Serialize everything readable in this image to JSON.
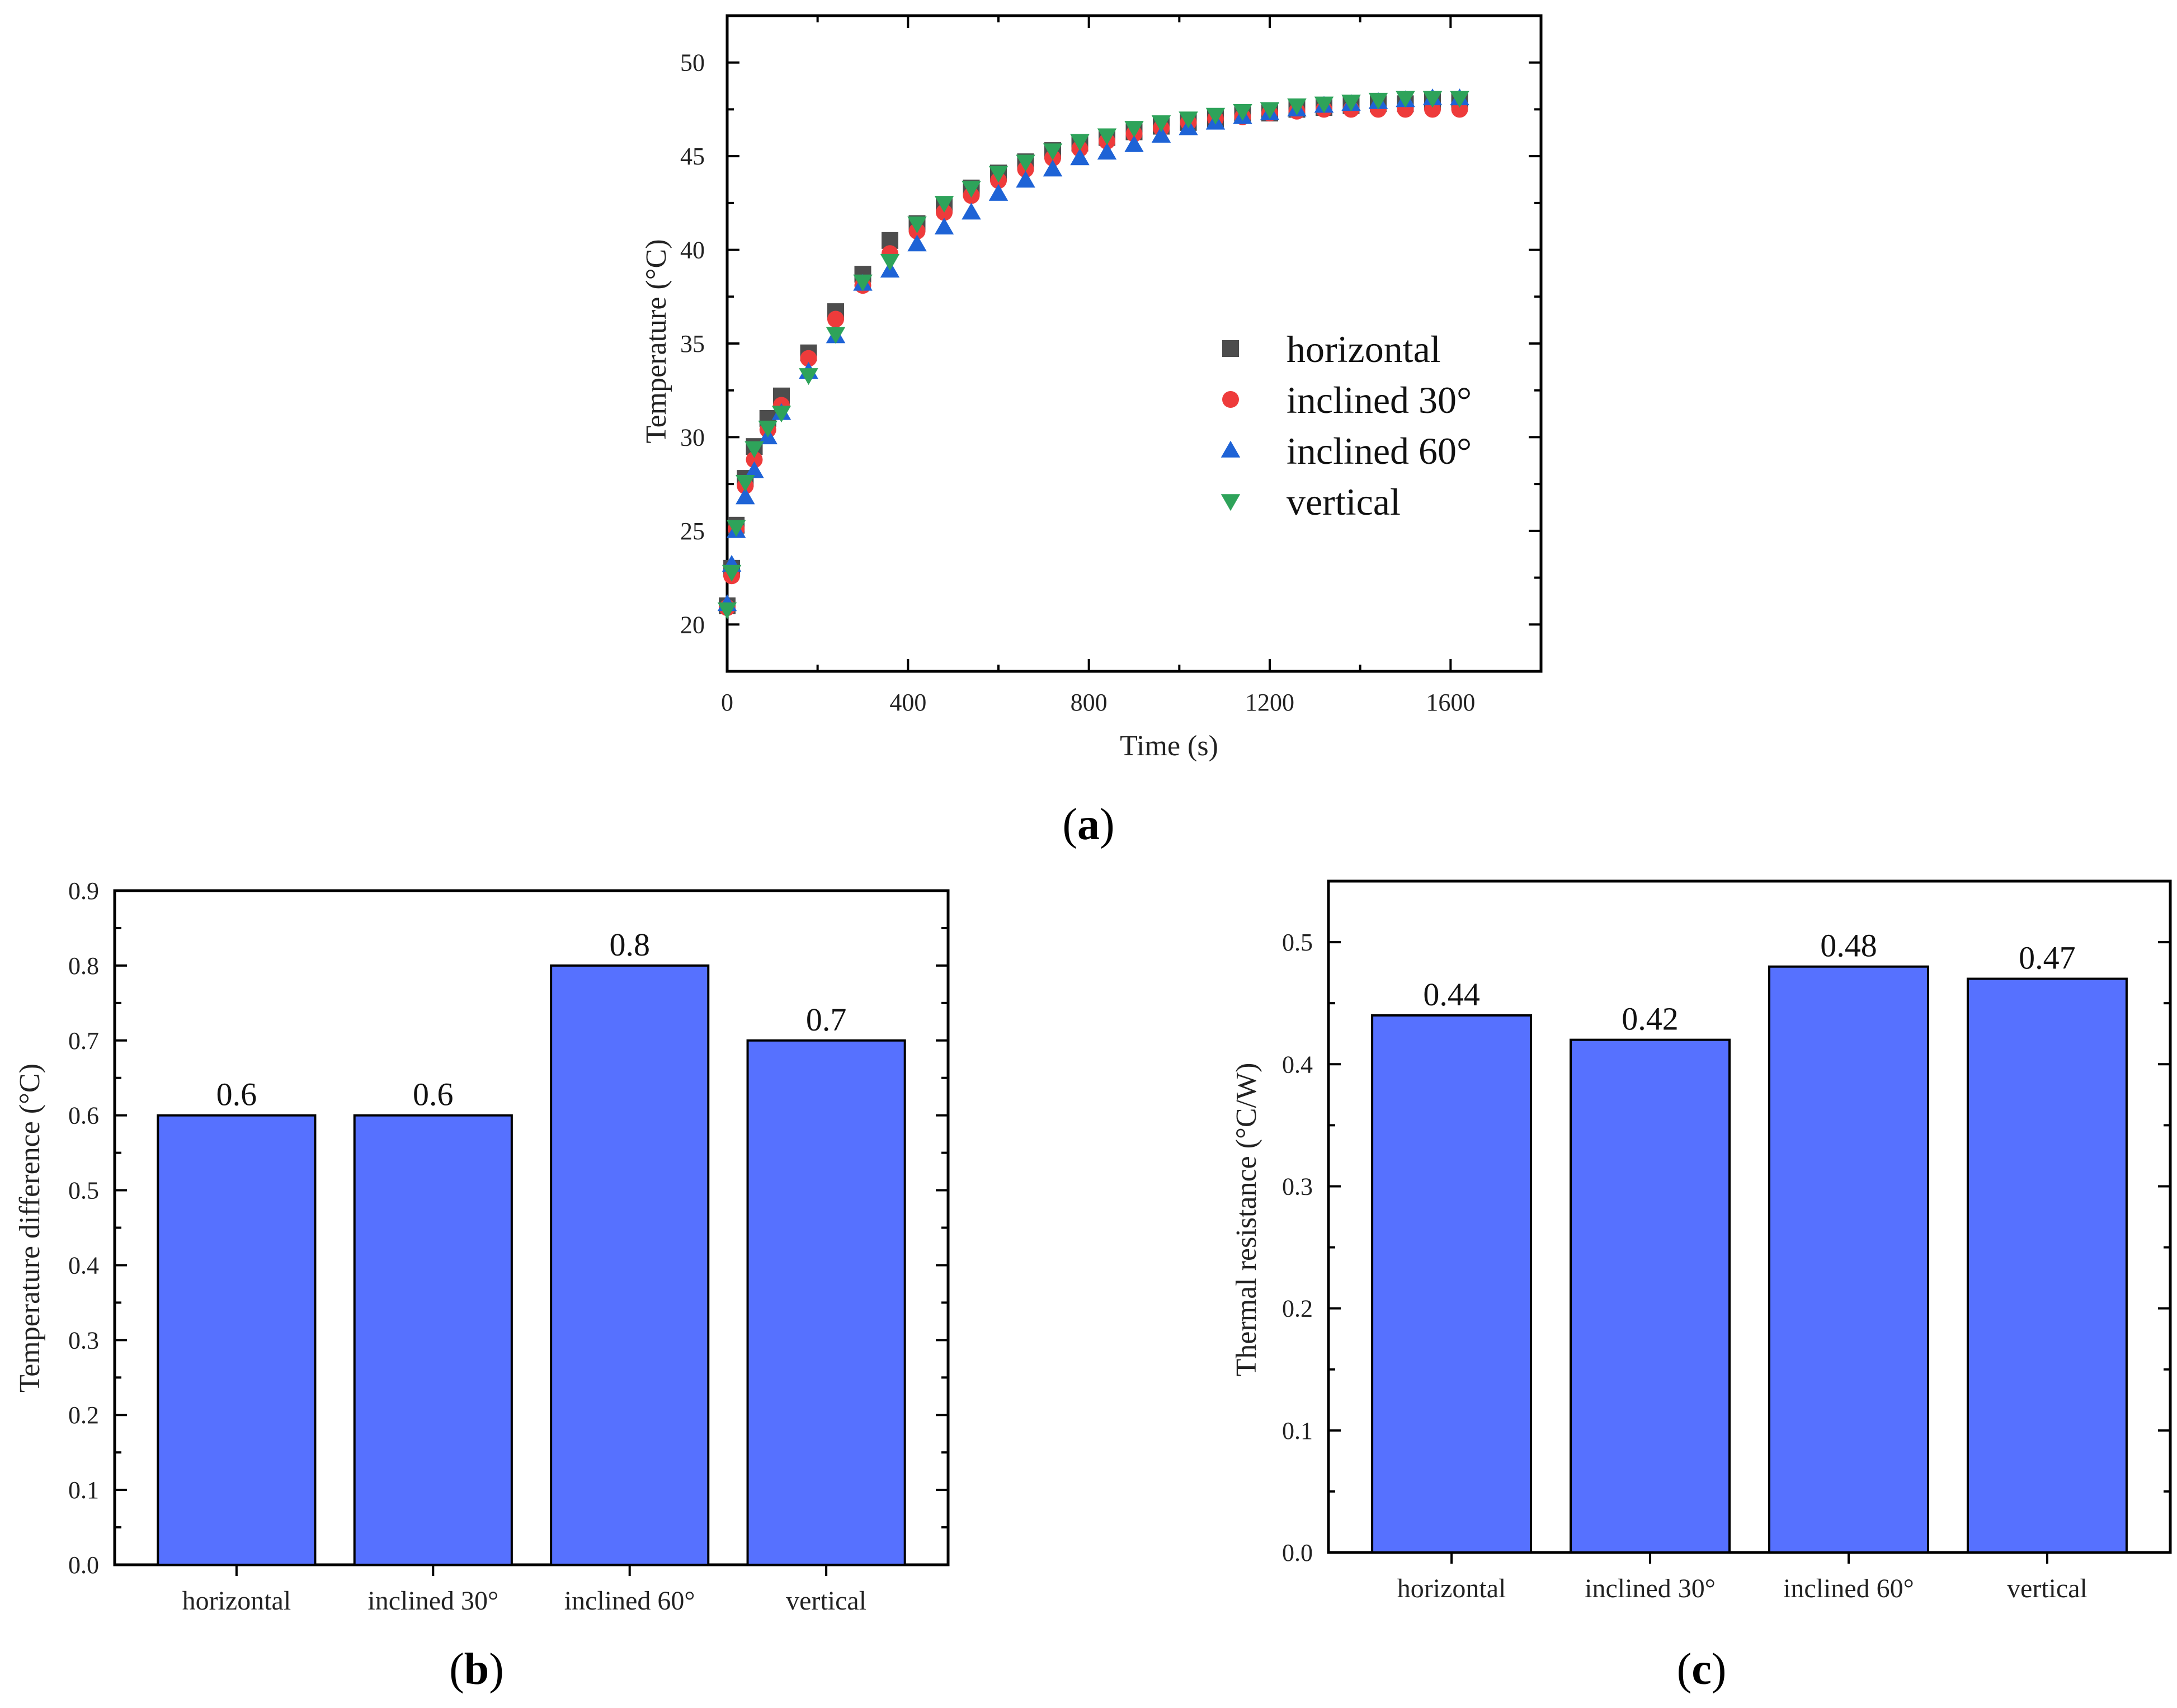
{
  "chart_data": [
    {
      "id": "a",
      "panel_label": "a",
      "type": "scatter",
      "xlabel": "Time (s)",
      "ylabel": "Temperature (°C)",
      "xlim": [
        0,
        1800
      ],
      "ylim": [
        17.5,
        52.5
      ],
      "xticks": [
        0,
        400,
        800,
        1200,
        1600
      ],
      "yticks": [
        20,
        25,
        30,
        35,
        40,
        45,
        50
      ],
      "legend_position": "right-center",
      "x": [
        0,
        10,
        20,
        40,
        60,
        90,
        120,
        180,
        240,
        300,
        360,
        420,
        480,
        540,
        600,
        660,
        720,
        780,
        840,
        900,
        960,
        1020,
        1080,
        1140,
        1200,
        1260,
        1320,
        1380,
        1440,
        1500,
        1560,
        1620
      ],
      "series": [
        {
          "name": "horizontal",
          "marker": "square",
          "color": "#4d4d4d",
          "values": [
            21.0,
            23.0,
            25.3,
            27.8,
            29.5,
            31.0,
            32.2,
            34.5,
            36.7,
            38.7,
            40.5,
            41.4,
            42.4,
            43.3,
            44.1,
            44.7,
            45.3,
            45.7,
            46.0,
            46.3,
            46.6,
            46.8,
            47.0,
            47.2,
            47.3,
            47.5,
            47.6,
            47.7,
            47.8,
            47.8,
            47.9,
            48.0
          ]
        },
        {
          "name": "inclined 30°",
          "marker": "circle",
          "color": "#ee3b3b",
          "values": [
            20.9,
            22.6,
            25.1,
            27.4,
            28.8,
            30.4,
            31.7,
            34.2,
            36.3,
            38.1,
            39.8,
            41.0,
            42.0,
            42.9,
            43.7,
            44.3,
            44.9,
            45.4,
            45.8,
            46.2,
            46.5,
            46.8,
            47.0,
            47.1,
            47.3,
            47.4,
            47.5,
            47.5,
            47.5,
            47.5,
            47.5,
            47.5
          ]
        },
        {
          "name": "inclined 60°",
          "marker": "triangle-up",
          "color": "#1e63d6",
          "values": [
            21.1,
            23.2,
            25.0,
            26.8,
            28.2,
            30.0,
            31.3,
            33.5,
            35.4,
            38.2,
            38.9,
            40.3,
            41.2,
            42.0,
            43.0,
            43.7,
            44.3,
            44.9,
            45.2,
            45.6,
            46.1,
            46.5,
            46.8,
            47.1,
            47.3,
            47.5,
            47.7,
            47.8,
            47.9,
            48.0,
            48.1,
            48.1
          ]
        },
        {
          "name": "vertical",
          "marker": "triangle-down",
          "color": "#2ea35a",
          "values": [
            20.8,
            22.8,
            25.2,
            27.6,
            29.4,
            30.5,
            31.3,
            33.3,
            35.5,
            38.3,
            39.4,
            41.4,
            42.5,
            43.3,
            44.1,
            44.7,
            45.3,
            45.8,
            46.1,
            46.5,
            46.8,
            47.0,
            47.2,
            47.4,
            47.5,
            47.7,
            47.8,
            47.9,
            48.0,
            48.1,
            48.1,
            48.1
          ]
        }
      ]
    },
    {
      "id": "b",
      "panel_label": "b",
      "type": "bar",
      "xlabel": "",
      "ylabel": "Temperature difference (°C)",
      "ylim": [
        0,
        0.9
      ],
      "yticks": [
        "0.0",
        "0.1",
        "0.2",
        "0.3",
        "0.4",
        "0.5",
        "0.6",
        "0.7",
        "0.8",
        "0.9"
      ],
      "categories": [
        "horizontal",
        "inclined 30°",
        "inclined 60°",
        "vertical"
      ],
      "values": [
        0.6,
        0.6,
        0.8,
        0.7
      ],
      "value_labels": [
        "0.6",
        "0.6",
        "0.8",
        "0.7"
      ],
      "bar_color": "#5671ff"
    },
    {
      "id": "c",
      "panel_label": "c",
      "type": "bar",
      "xlabel": "",
      "ylabel": "Thermal resistance (°C/W)",
      "ylim": [
        0,
        0.55
      ],
      "yticks": [
        "0.0",
        "0.1",
        "0.2",
        "0.3",
        "0.4",
        "0.5"
      ],
      "categories": [
        "horizontal",
        "inclined 30°",
        "inclined 60°",
        "vertical"
      ],
      "values": [
        0.44,
        0.42,
        0.48,
        0.47
      ],
      "value_labels": [
        "0.44",
        "0.42",
        "0.48",
        "0.47"
      ],
      "bar_color": "#5671ff"
    }
  ]
}
